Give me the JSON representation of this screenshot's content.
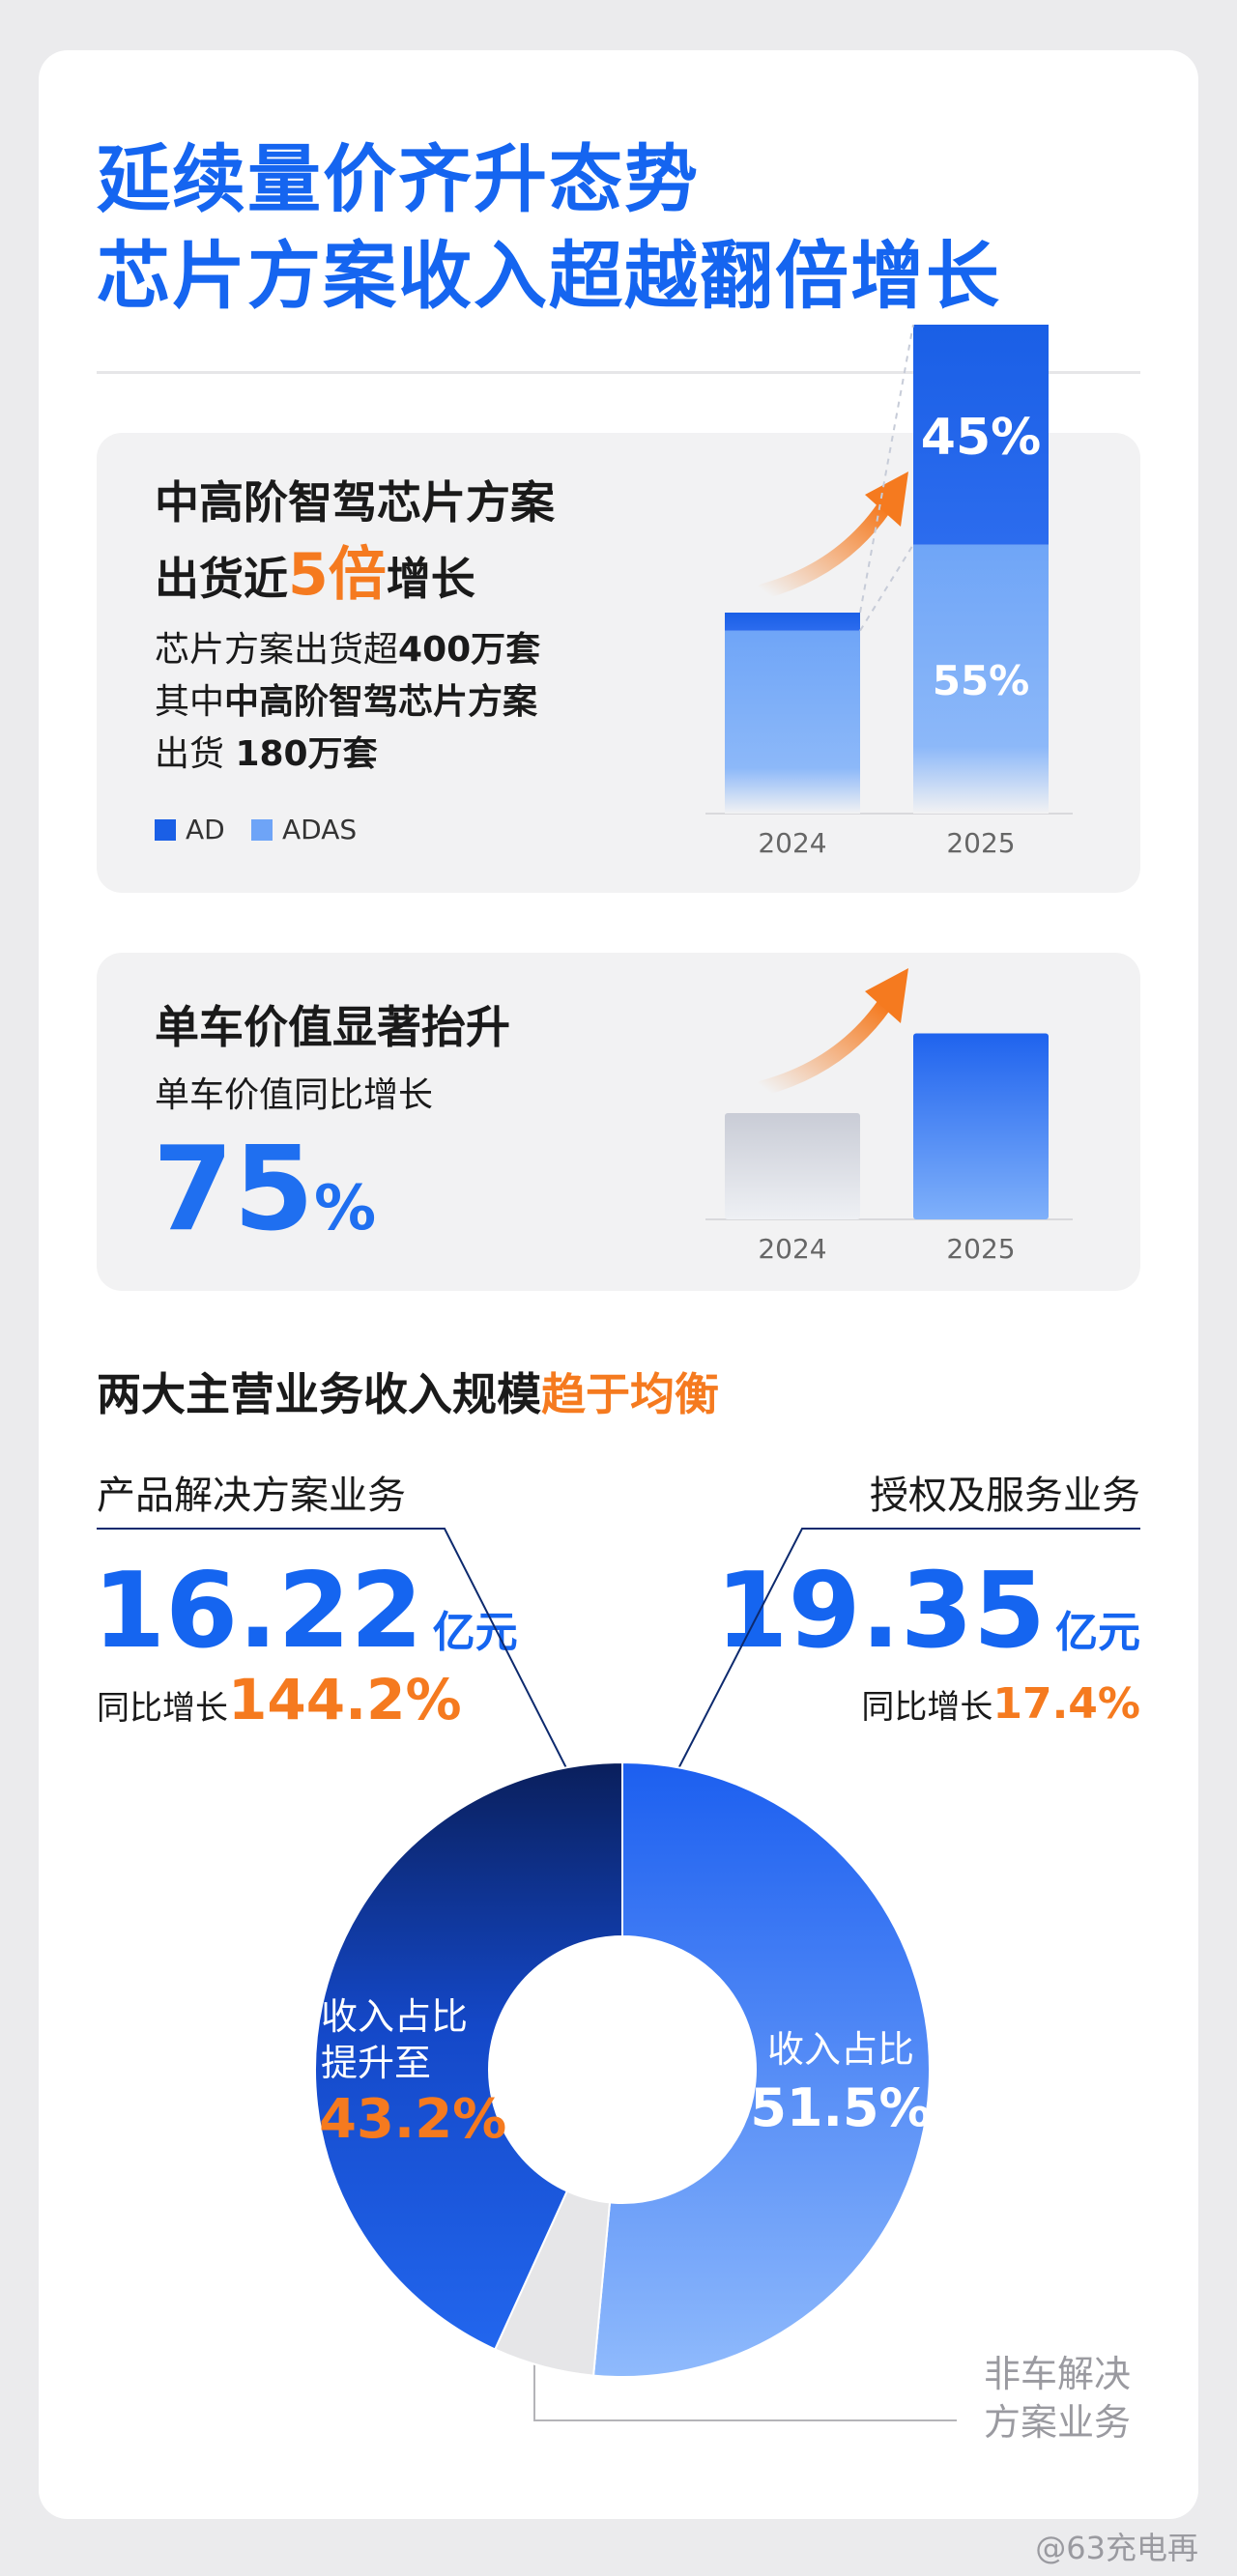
{
  "header": {
    "title_line1": "延续量价齐升态势",
    "title_line2": "芯片方案收入超越翻倍增长"
  },
  "panel1": {
    "heading_line1": "中高阶智驾芯片方案",
    "heading_line2_pre": "出货近",
    "heading_line2_num": "5倍",
    "heading_line2_post": "增长",
    "body_line1_pre": "芯片方案出货超",
    "body_line1_bold": "400万套",
    "body_line2_pre": "其中",
    "body_line2_bold": "中高阶智驾芯片方案",
    "body_line3_pre": "出货 ",
    "body_line3_bold": "180万套",
    "legend": [
      {
        "label": "AD",
        "color": "#1a5fe6"
      },
      {
        "label": "ADAS",
        "color": "#6ea4f7"
      }
    ]
  },
  "panel2": {
    "heading": "单车价值显著抬升",
    "subheading": "单车价值同比增长",
    "big_number": "75",
    "big_unit": "%"
  },
  "section": {
    "heading_pre": "两大主营业务收入规模",
    "heading_highlight": "趋于均衡"
  },
  "left_biz": {
    "name": "产品解决方案业务",
    "amount": "16.22",
    "unit": "亿元",
    "growth_label": "同比增长",
    "growth_value": "144.2%"
  },
  "right_biz": {
    "name": "授权及服务业务",
    "amount": "19.35",
    "unit": "亿元",
    "growth_label": "同比增长",
    "growth_value": "17.4%"
  },
  "donut_labels": {
    "right_line1": "收入占比",
    "right_value": "51.5%",
    "left_line1": "收入占比",
    "left_line2": "提升至",
    "left_value": "43.2%",
    "other_line1": "非车解决",
    "other_line2": "方案业务"
  },
  "watermark": "@63充电再",
  "colors": {
    "primary_blue": "#1565f0",
    "orange": "#f57a1f",
    "dark_navy": "#0d2a6e",
    "text_dark": "#1a1a1a"
  },
  "chart_data": [
    {
      "type": "bar",
      "stacked": true,
      "categories": [
        "2024",
        "2025"
      ],
      "series": [
        {
          "name": "ADAS",
          "values": [
            0.91,
            0.55
          ],
          "labels": [
            "",
            "55%"
          ]
        },
        {
          "name": "AD",
          "values": [
            0.09,
            0.45
          ],
          "labels": [
            "",
            "45%"
          ]
        }
      ],
      "legend": "bottom-left"
    },
    {
      "type": "bar",
      "categories": [
        "2024",
        "2025"
      ],
      "values": [
        1.0,
        1.75
      ]
    },
    {
      "type": "pie",
      "donut": true,
      "slices": [
        {
          "label": "授权及服务业务",
          "value": 51.5,
          "color": "#2c6ff0"
        },
        {
          "label": "非车解决方案业务",
          "value": 5.3,
          "color": "#e6e6e8"
        },
        {
          "label": "产品解决方案业务",
          "value": 43.2,
          "color": "#1a55d8"
        }
      ]
    }
  ]
}
